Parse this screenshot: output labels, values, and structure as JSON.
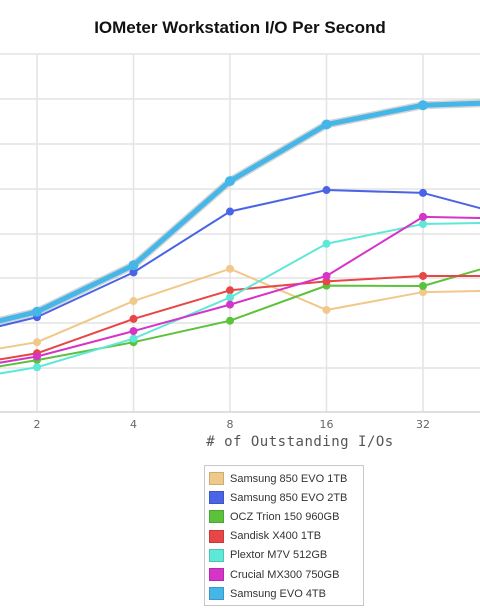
{
  "chart_data": {
    "type": "line",
    "title": "IOMeter Workstation I/O Per Second",
    "xlabel": "# of Outstanding I/Os",
    "ylabel": "",
    "x_categories_visible": [
      "2",
      "4",
      "8",
      "16",
      "32"
    ],
    "x_positions": [
      1,
      2,
      4,
      8,
      16,
      32,
      64
    ],
    "grid": true,
    "legend_position": "bottom-center",
    "series": [
      {
        "name": "Samsung 850 EVO 1TB",
        "color": "#f0c98a",
        "width": 2,
        "values": [
          0.15,
          0.195,
          0.31,
          0.4,
          0.285,
          0.335,
          0.34
        ]
      },
      {
        "name": "Samsung 850 EVO 2TB",
        "color": "#4a64e6",
        "width": 2,
        "values": [
          0.2,
          0.265,
          0.39,
          0.56,
          0.62,
          0.612,
          0.54
        ]
      },
      {
        "name": "OCZ Trion 150 960GB",
        "color": "#5cc23c",
        "width": 2,
        "values": [
          0.1,
          0.145,
          0.195,
          0.255,
          0.353,
          0.352,
          0.43
        ]
      },
      {
        "name": "Sandisk X400 1TB",
        "color": "#e84545",
        "width": 2,
        "values": [
          0.12,
          0.164,
          0.26,
          0.34,
          0.365,
          0.38,
          0.38
        ]
      },
      {
        "name": "Plextor M7V 512GB",
        "color": "#5ee8d8",
        "width": 2,
        "values": [
          0.08,
          0.125,
          0.205,
          0.32,
          0.47,
          0.525,
          0.53
        ]
      },
      {
        "name": "Crucial MX300 750GB",
        "color": "#d633c8",
        "width": 2,
        "values": [
          0.11,
          0.155,
          0.226,
          0.3,
          0.38,
          0.545,
          0.54
        ]
      },
      {
        "name": "Samsung EVO 4TB",
        "color": "#45b6e8",
        "width": 5,
        "values": [
          0.215,
          0.28,
          0.41,
          0.645,
          0.803,
          0.857,
          0.866
        ]
      }
    ]
  }
}
